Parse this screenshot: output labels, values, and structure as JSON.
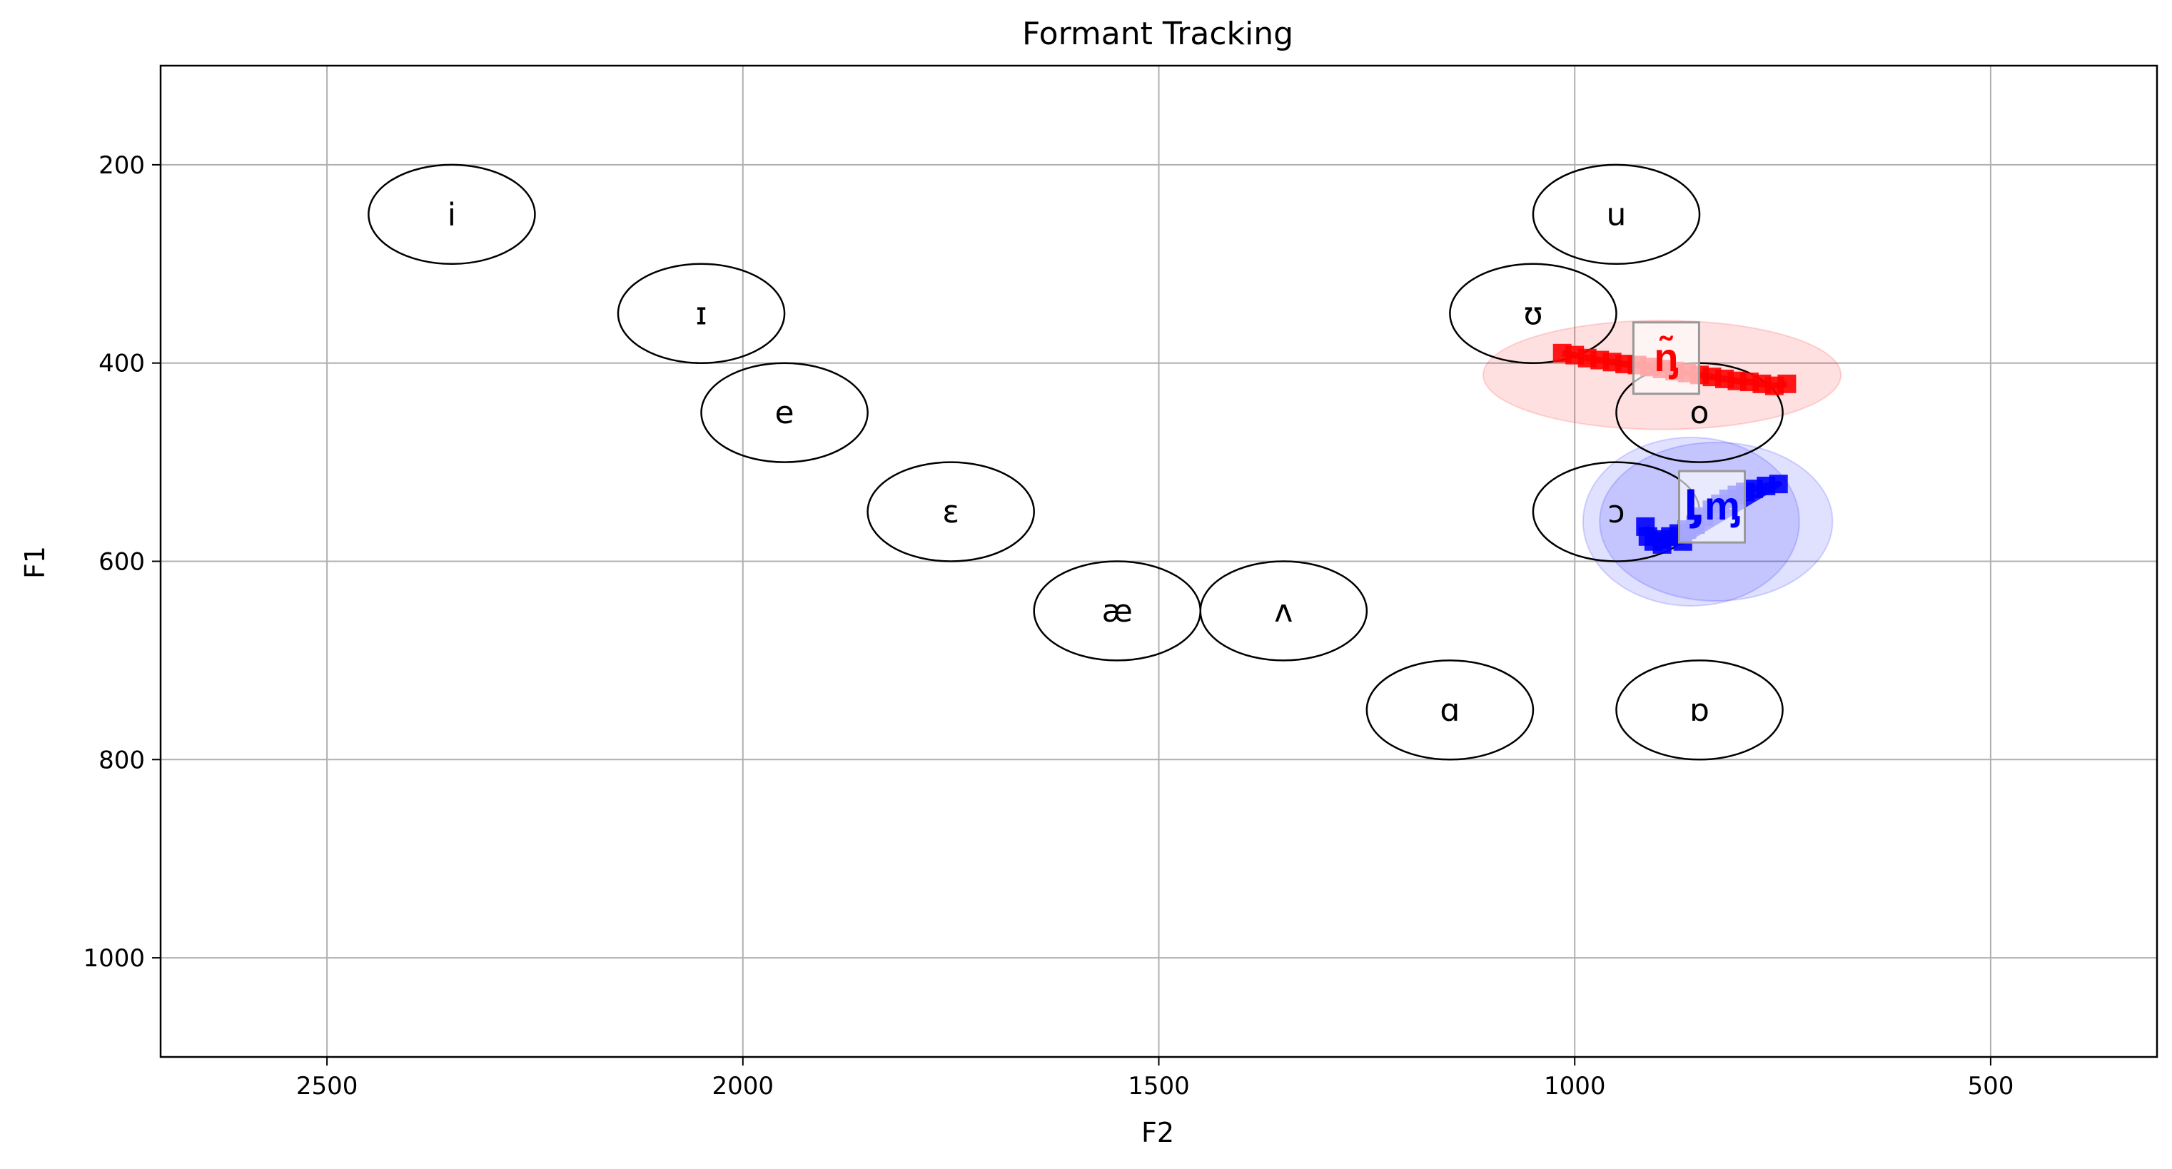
{
  "chart_data": {
    "type": "scatter",
    "title": "Formant Tracking",
    "xlabel": "F2",
    "ylabel": "F1",
    "xlim": [
      2700,
      300
    ],
    "ylim": [
      1100,
      100
    ],
    "x_ticks": [
      2500,
      2000,
      1500,
      1000,
      500
    ],
    "y_ticks": [
      200,
      400,
      600,
      800,
      1000
    ],
    "grid": true,
    "vowels": [
      {
        "symbol": "i",
        "f2": 2350,
        "f1": 250
      },
      {
        "symbol": "ɪ",
        "f2": 2050,
        "f1": 350
      },
      {
        "symbol": "e",
        "f2": 1950,
        "f1": 450
      },
      {
        "symbol": "ɛ",
        "f2": 1750,
        "f1": 550
      },
      {
        "symbol": "æ",
        "f2": 1550,
        "f1": 650
      },
      {
        "symbol": "ʌ",
        "f2": 1350,
        "f1": 650
      },
      {
        "symbol": "ɑ",
        "f2": 1150,
        "f1": 750
      },
      {
        "symbol": "u",
        "f2": 950,
        "f1": 250
      },
      {
        "symbol": "ʊ",
        "f2": 1050,
        "f1": 350
      },
      {
        "symbol": "o",
        "f2": 850,
        "f1": 450
      },
      {
        "symbol": "ɔ",
        "f2": 950,
        "f1": 550
      },
      {
        "symbol": "ɒ",
        "f2": 850,
        "f1": 750
      }
    ],
    "vowel_ellipse": {
      "width_f2": 200,
      "height_f1": 100
    },
    "series": [
      {
        "color": "#ff0000",
        "points": [
          {
            "f2": 1015,
            "f1": 390
          },
          {
            "f2": 1000,
            "f1": 392
          },
          {
            "f2": 985,
            "f1": 395
          },
          {
            "f2": 970,
            "f1": 397
          },
          {
            "f2": 955,
            "f1": 399
          },
          {
            "f2": 940,
            "f1": 401
          },
          {
            "f2": 925,
            "f1": 402
          },
          {
            "f2": 910,
            "f1": 404
          },
          {
            "f2": 895,
            "f1": 406
          },
          {
            "f2": 880,
            "f1": 408
          },
          {
            "f2": 865,
            "f1": 410
          },
          {
            "f2": 850,
            "f1": 412
          },
          {
            "f2": 835,
            "f1": 414
          },
          {
            "f2": 820,
            "f1": 416
          },
          {
            "f2": 805,
            "f1": 418
          },
          {
            "f2": 790,
            "f1": 419
          },
          {
            "f2": 775,
            "f1": 421
          },
          {
            "f2": 760,
            "f1": 423
          },
          {
            "f2": 745,
            "f1": 421
          }
        ],
        "cloud": {
          "f2": 895,
          "f1": 412,
          "width_f2": 430,
          "height_f1": 110
        },
        "marker_label": "ᶇ̃",
        "marker": {
          "f2": 890,
          "f1": 395
        }
      },
      {
        "color": "#0000ff",
        "points": [
          {
            "f2": 915,
            "f1": 565
          },
          {
            "f2": 912,
            "f1": 575
          },
          {
            "f2": 905,
            "f1": 580
          },
          {
            "f2": 895,
            "f1": 578
          },
          {
            "f2": 885,
            "f1": 575
          },
          {
            "f2": 875,
            "f1": 572
          },
          {
            "f2": 865,
            "f1": 568
          },
          {
            "f2": 855,
            "f1": 563
          },
          {
            "f2": 845,
            "f1": 555
          },
          {
            "f2": 835,
            "f1": 548
          },
          {
            "f2": 825,
            "f1": 542
          },
          {
            "f2": 815,
            "f1": 537
          },
          {
            "f2": 805,
            "f1": 533
          },
          {
            "f2": 795,
            "f1": 530
          },
          {
            "f2": 785,
            "f1": 527
          },
          {
            "f2": 770,
            "f1": 524
          },
          {
            "f2": 755,
            "f1": 522
          },
          {
            "f2": 870,
            "f1": 580
          },
          {
            "f2": 895,
            "f1": 583
          }
        ],
        "cloud": {
          "f2": 860,
          "f1": 560,
          "width_f2": 260,
          "height_f1": 170
        },
        "cloud2": {
          "f2": 830,
          "f1": 560,
          "width_f2": 280,
          "height_f1": 160
        },
        "marker_label": "ᶅᶆ",
        "marker": {
          "f2": 835,
          "f1": 545
        }
      }
    ]
  }
}
